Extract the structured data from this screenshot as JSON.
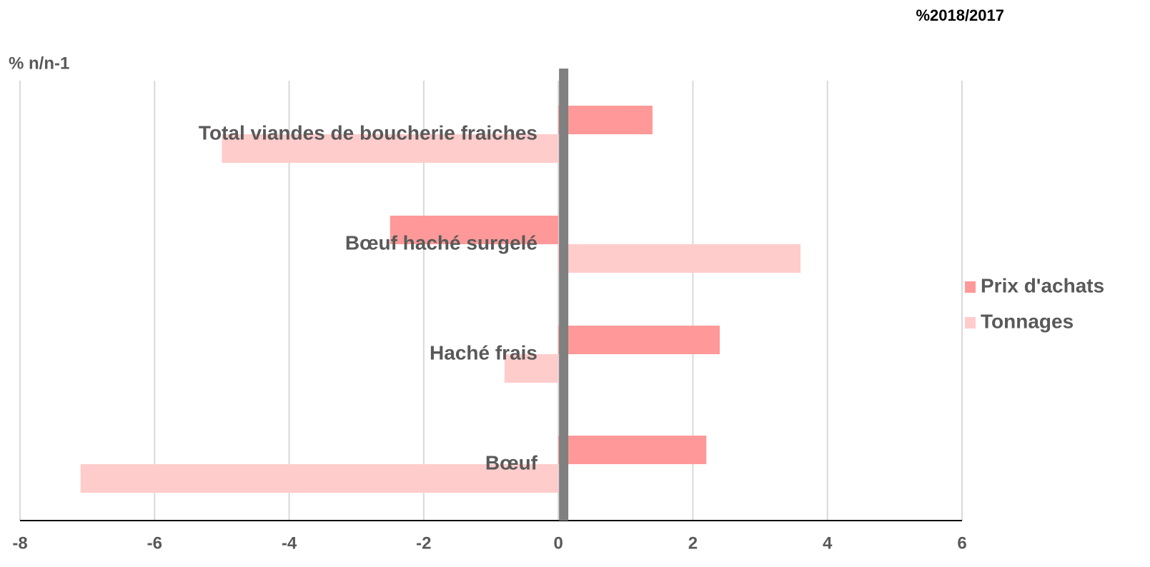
{
  "chart_data": {
    "type": "hbar",
    "title": "%2018/2017",
    "y_label": "% n/n-1",
    "categories": [
      "Total viandes de boucherie fraiches",
      "Bœuf haché surgelé",
      "Haché frais",
      "Bœuf"
    ],
    "series": [
      {
        "name": "Prix d'achats",
        "color": "#ff9999",
        "values": [
          1.4,
          -2.5,
          2.4,
          2.2
        ]
      },
      {
        "name": "Tonnages",
        "color": "#ffcccc",
        "values": [
          -5.0,
          3.6,
          -0.8,
          -7.1
        ]
      }
    ],
    "xlim": [
      -8,
      6
    ],
    "xticks": [
      -8,
      -6,
      -4,
      -2,
      0,
      2,
      4,
      6
    ],
    "grid": true,
    "legend": "right"
  }
}
